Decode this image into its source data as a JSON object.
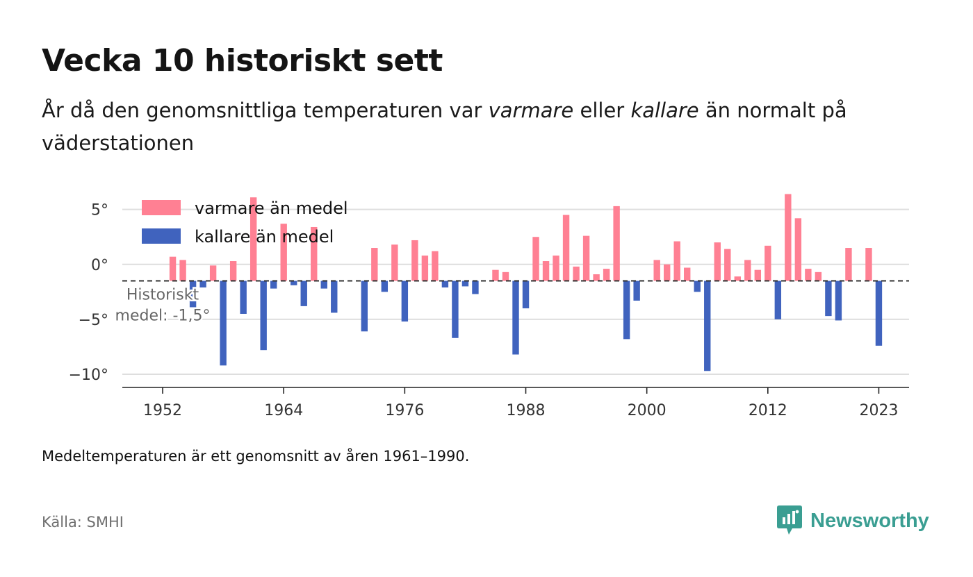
{
  "header": {
    "title": "Vecka 10 historiskt sett",
    "subtitle_part1": "År då den genomsnittliga temperaturen var ",
    "subtitle_em1": "varmare",
    "subtitle_part2": " eller ",
    "subtitle_em2": "kallare",
    "subtitle_part3": " än normalt på väderstationen"
  },
  "footer": {
    "note": "Medeltemperaturen är ett genomsnitt av åren 1961–1990.",
    "source": "Källa: SMHI",
    "brand": "Newsworthy"
  },
  "colors": {
    "warm": "#ff8093",
    "cold": "#4063be",
    "brand": "#3a9e92"
  },
  "chart_data": {
    "type": "bar",
    "baseline": -1.5,
    "baseline_label": [
      "Historiskt",
      "medel: -1,5°"
    ],
    "ylim": [
      -11.2,
      7
    ],
    "yticks": [
      5,
      0,
      -5,
      -10
    ],
    "ytick_labels": [
      "5°",
      "0°",
      "−5°",
      "−10°"
    ],
    "xlim": [
      1948,
      2026
    ],
    "xticks": [
      1952,
      1964,
      1976,
      1988,
      2000,
      2012,
      2023
    ],
    "xtick_labels": [
      "1952",
      "1964",
      "1976",
      "1988",
      "2000",
      "2012",
      "2023"
    ],
    "legend": {
      "placement": "top-left",
      "warm_label": "varmare än medel",
      "cold_label": "kallare än medel"
    },
    "x": [
      1953,
      1954,
      1955,
      1956,
      1957,
      1958,
      1959,
      1960,
      1961,
      1962,
      1963,
      1964,
      1965,
      1966,
      1967,
      1968,
      1969,
      1970,
      1971,
      1972,
      1973,
      1974,
      1975,
      1976,
      1977,
      1978,
      1979,
      1980,
      1981,
      1982,
      1983,
      1984,
      1985,
      1986,
      1987,
      1988,
      1989,
      1990,
      1991,
      1992,
      1993,
      1994,
      1995,
      1996,
      1997,
      1998,
      1999,
      2000,
      2001,
      2002,
      2003,
      2004,
      2005,
      2006,
      2007,
      2008,
      2009,
      2010,
      2011,
      2012,
      2013,
      2014,
      2015,
      2016,
      2017,
      2018,
      2019,
      2020,
      2021,
      2022,
      2023
    ],
    "values": [
      0.7,
      0.4,
      -3.9,
      -2.1,
      -0.1,
      -9.2,
      0.3,
      -4.5,
      6.1,
      -7.8,
      -2.2,
      3.7,
      -1.9,
      -3.8,
      3.4,
      -2.2,
      -4.4,
      -1.5,
      -1.5,
      -6.1,
      1.5,
      -2.5,
      1.8,
      -5.2,
      2.2,
      0.8,
      1.2,
      -2.1,
      -6.7,
      -2,
      -2.7,
      -1.5,
      -0.5,
      -0.7,
      -8.2,
      -4,
      2.5,
      0.3,
      0.8,
      4.5,
      -0.2,
      2.6,
      -0.9,
      -0.4,
      5.3,
      -6.8,
      -3.3,
      -1.5,
      0.4,
      0,
      2.1,
      -0.3,
      -2.5,
      -9.7,
      2,
      1.4,
      -1.1,
      0.4,
      -0.5,
      1.7,
      -5,
      6.4,
      4.2,
      -0.4,
      -0.7,
      -4.7,
      -5.1,
      1.5,
      -1.5,
      1.5,
      -7.4
    ]
  }
}
